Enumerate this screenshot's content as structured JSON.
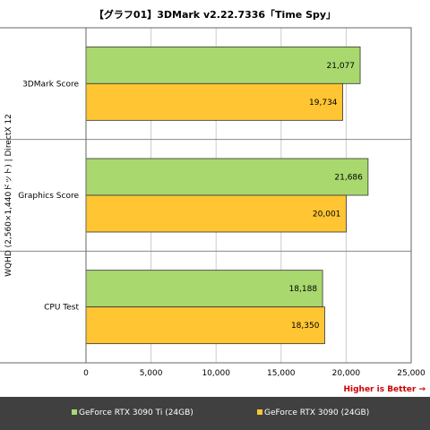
{
  "chart_data": {
    "type": "bar",
    "orientation": "horizontal",
    "title": "【グラフ01】3DMark v2.22.7336「Time Spy」",
    "ylabel": "WQHD (2,560×1,440ドット) | DirectX 12",
    "xlabel": "",
    "note": "Higher is Better →",
    "categories": [
      "3DMark Score",
      "Graphics Score",
      "CPU Test"
    ],
    "series": [
      {
        "name": "GeForce RTX 3090 Ti (24GB)",
        "values": [
          21077,
          21686,
          18188
        ],
        "labels": [
          "21,077",
          "21,686",
          "18,188"
        ]
      },
      {
        "name": "GeForce RTX 3090 (24GB)",
        "values": [
          19734,
          20001,
          18350
        ],
        "labels": [
          "19,734",
          "20,001",
          "18,350"
        ]
      }
    ],
    "xlim": [
      0,
      25000
    ],
    "xticks": [
      0,
      5000,
      10000,
      15000,
      20000,
      25000
    ],
    "xtick_labels": [
      "0",
      "5,000",
      "10,000",
      "15,000",
      "20,000",
      "25,000"
    ],
    "grid": true,
    "legend_position": "bottom",
    "colors": {
      "series": [
        "#a8d86e",
        "#ffc533"
      ],
      "grid": "#cccccc",
      "note": "#cc0000",
      "legend_bg": "#404040"
    }
  }
}
